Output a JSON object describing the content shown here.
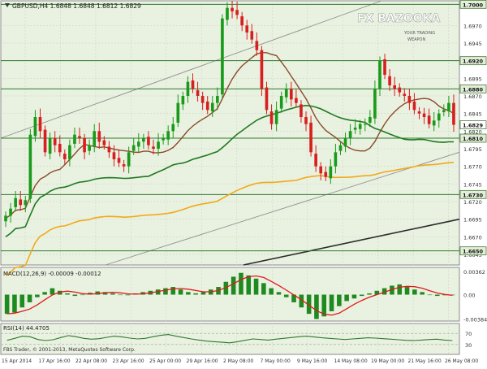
{
  "header": {
    "symbol_info": "GBPUSD,H4  1.6848 1.6848 1.6812 1.6829"
  },
  "watermark": {
    "brand": "FX BAZOOKA",
    "tagline_1": "YOUR TRADING",
    "tagline_2": "WEAPON"
  },
  "colors": {
    "background": "#ffffff",
    "panel": "#e9f1e1",
    "grid": "#c7d2bd",
    "bull": "#1a9a1a",
    "bear": "#d81f1f",
    "ma_fast": "#8b4a28",
    "ma_mid": "#1f7a1f",
    "ma_slow": "#f2a91a",
    "channel": "#8f8f8f",
    "level_line": "#2e7a2e",
    "trend_dark": "#2b2b2b",
    "macd_bars": "#1f8a1f",
    "macd_signal": "#e21a1a",
    "rsi_line": "#2e7a2e"
  },
  "price_axis": {
    "ticks": [
      "1.6970",
      "1.6945",
      "1.6920",
      "1.6895",
      "1.6870",
      "1.6845",
      "1.6820",
      "1.6795",
      "1.6770",
      "1.6745",
      "1.6720",
      "1.6695",
      "1.6670",
      "1.6645"
    ],
    "highlighted": [
      "1.7000",
      "1.6920",
      "1.6880",
      "1.6829",
      "1.6810",
      "1.6730",
      "1.6650"
    ]
  },
  "time_axis": {
    "labels": [
      "15 Apr 2014",
      "17 Apr 16:00",
      "22 Apr 08:00",
      "23 Apr 16:00",
      "25 Apr 00:00",
      "29 Apr 16:00",
      "2 May 08:00",
      "7 May 00:00",
      "9 May 16:00",
      "14 May 08:00",
      "19 May 00:00",
      "21 May 16:00",
      "26 May 08:00"
    ]
  },
  "macd": {
    "label": "MACD(12,26,9) -0.00009 -0.00012",
    "ticks": [
      "0.00362",
      "0.00",
      "-0.00384"
    ]
  },
  "rsi": {
    "label": "RSI(14) 44.4705",
    "ticks": [
      "70",
      "30"
    ]
  },
  "footer": {
    "copyright": "FBS Trader, © 2001-2013, MetaQuotes Software Corp."
  },
  "chart_data": {
    "type": "candlestick",
    "symbol": "GBPUSD",
    "timeframe": "H4",
    "ylim": [
      1.663,
      1.7005
    ],
    "horizontal_levels": [
      1.7,
      1.692,
      1.688,
      1.681,
      1.673,
      1.665
    ],
    "last_price": 1.6829,
    "ohlc_last": {
      "open": 1.6848,
      "high": 1.6848,
      "low": 1.6812,
      "close": 1.6829
    },
    "close_path": [
      1.67,
      1.671,
      1.6725,
      1.6715,
      1.6722,
      1.6815,
      1.684,
      1.682,
      1.679,
      1.681,
      1.68,
      1.679,
      1.678,
      1.68,
      1.6815,
      1.681,
      1.679,
      1.68,
      1.682,
      1.6805,
      1.68,
      1.679,
      1.678,
      1.6775,
      1.677,
      1.679,
      1.68,
      1.6805,
      1.681,
      1.68,
      1.6795,
      1.6805,
      1.681,
      1.682,
      1.683,
      1.686,
      1.687,
      1.689,
      1.688,
      1.687,
      1.686,
      1.685,
      1.686,
      1.687,
      1.698,
      1.6995,
      1.699,
      1.6985,
      1.697,
      1.696,
      1.695,
      1.6935,
      1.688,
      1.685,
      1.683,
      1.685,
      1.687,
      1.688,
      1.6865,
      1.686,
      1.684,
      1.683,
      1.679,
      1.677,
      1.676,
      1.6755,
      1.677,
      1.679,
      1.68,
      1.681,
      1.682,
      1.6825,
      1.683,
      1.683,
      1.684,
      1.688,
      1.692,
      1.69,
      1.6885,
      1.688,
      1.6875,
      1.687,
      1.686,
      1.685,
      1.6845,
      1.684,
      1.683,
      1.6835,
      1.6845,
      1.685,
      1.686,
      1.6829
    ],
    "macd_hist": [
      -0.003,
      -0.0028,
      -0.002,
      -0.0012,
      -0.0004,
      0.0004,
      0.001,
      0.0006,
      0.0002,
      -0.0002,
      0.0,
      0.0003,
      0.0005,
      0.0004,
      0.0002,
      0.0,
      -0.0001,
      0.0002,
      0.0004,
      0.0006,
      0.0008,
      0.001,
      0.0012,
      0.0008,
      0.0004,
      0.0002,
      0.0004,
      0.0008,
      0.0012,
      0.002,
      0.0028,
      0.0034,
      0.003,
      0.0025,
      0.0018,
      0.001,
      0.0004,
      -0.0004,
      -0.0012,
      -0.002,
      -0.003,
      -0.0038,
      -0.0034,
      -0.0026,
      -0.0018,
      -0.001,
      -0.0006,
      -0.0002,
      0.0002,
      0.0006,
      0.001,
      0.0014,
      0.0016,
      0.0012,
      0.0008,
      0.0004,
      0.0,
      -0.0002,
      -0.0001,
      -0.0001
    ],
    "rsi": [
      45,
      52,
      60,
      58,
      48,
      44,
      47,
      55,
      62,
      58,
      52,
      49,
      51,
      56,
      60,
      57,
      53,
      50,
      52,
      58,
      63,
      66,
      60,
      55,
      50,
      46,
      42,
      40,
      38,
      36,
      40,
      45,
      50,
      48,
      46,
      49,
      52,
      55,
      58,
      60,
      57,
      54,
      52,
      50,
      48,
      50,
      52,
      54,
      53,
      51,
      49,
      47,
      45,
      44,
      46,
      48,
      49,
      46,
      44
    ]
  }
}
